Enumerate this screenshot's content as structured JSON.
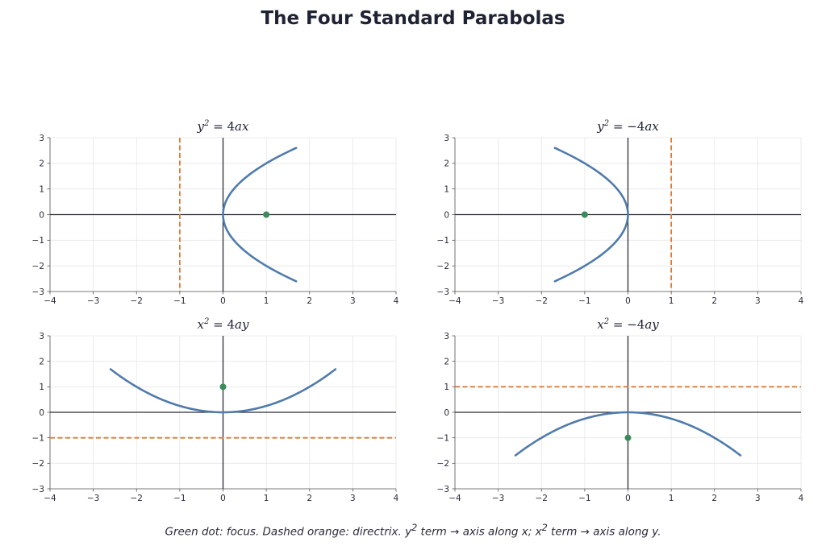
{
  "title": "The Four Standard Parabolas",
  "footnote": {
    "part1": "Green dot: focus.  Dashed orange: directrix.  y",
    "sup1": "2",
    "part2": " term → axis along x;  x",
    "sup2": "2",
    "part3": " term → axis along y."
  },
  "colors": {
    "curve": "#4f7bab",
    "directrix": "#d97b3a",
    "focus": "#3a8a5a",
    "axis": "#2a2a3a",
    "grid": "#e6e6e6"
  },
  "chart_data": [
    {
      "type": "line",
      "title": {
        "base": "y",
        "sup": "2",
        "rhs": "4ax"
      },
      "orientation": "right",
      "a": 1,
      "xlim": [
        -4,
        4
      ],
      "ylim": [
        -3,
        3
      ],
      "x_ticks": [
        -4,
        -3,
        -2,
        -1,
        0,
        1,
        2,
        3,
        4
      ],
      "y_ticks": [
        -3,
        -2,
        -1,
        0,
        1,
        2,
        3
      ],
      "parameter_range": [
        -2.6,
        2.6
      ],
      "focus": [
        1,
        0
      ],
      "directrix": {
        "axis": "x",
        "value": -1
      },
      "grid": true
    },
    {
      "type": "line",
      "title": {
        "base": "y",
        "sup": "2",
        "rhs": "−4ax"
      },
      "orientation": "left",
      "a": 1,
      "xlim": [
        -4,
        4
      ],
      "ylim": [
        -3,
        3
      ],
      "x_ticks": [
        -4,
        -3,
        -2,
        -1,
        0,
        1,
        2,
        3,
        4
      ],
      "y_ticks": [
        -3,
        -2,
        -1,
        0,
        1,
        2,
        3
      ],
      "parameter_range": [
        -2.6,
        2.6
      ],
      "focus": [
        -1,
        0
      ],
      "directrix": {
        "axis": "x",
        "value": 1
      },
      "grid": true
    },
    {
      "type": "line",
      "title": {
        "base": "x",
        "sup": "2",
        "rhs": "4ay"
      },
      "orientation": "up",
      "a": 1,
      "xlim": [
        -4,
        4
      ],
      "ylim": [
        -3,
        3
      ],
      "x_ticks": [
        -4,
        -3,
        -2,
        -1,
        0,
        1,
        2,
        3,
        4
      ],
      "y_ticks": [
        -3,
        -2,
        -1,
        0,
        1,
        2,
        3
      ],
      "parameter_range": [
        -2.6,
        2.6
      ],
      "focus": [
        0,
        1
      ],
      "directrix": {
        "axis": "y",
        "value": -1
      },
      "grid": true
    },
    {
      "type": "line",
      "title": {
        "base": "x",
        "sup": "2",
        "rhs": "−4ay"
      },
      "orientation": "down",
      "a": 1,
      "xlim": [
        -4,
        4
      ],
      "ylim": [
        -3,
        3
      ],
      "x_ticks": [
        -4,
        -3,
        -2,
        -1,
        0,
        1,
        2,
        3,
        4
      ],
      "y_ticks": [
        -3,
        -2,
        -1,
        0,
        1,
        2,
        3
      ],
      "parameter_range": [
        -2.6,
        2.6
      ],
      "focus": [
        0,
        -1
      ],
      "directrix": {
        "axis": "y",
        "value": 1
      },
      "grid": true
    }
  ]
}
